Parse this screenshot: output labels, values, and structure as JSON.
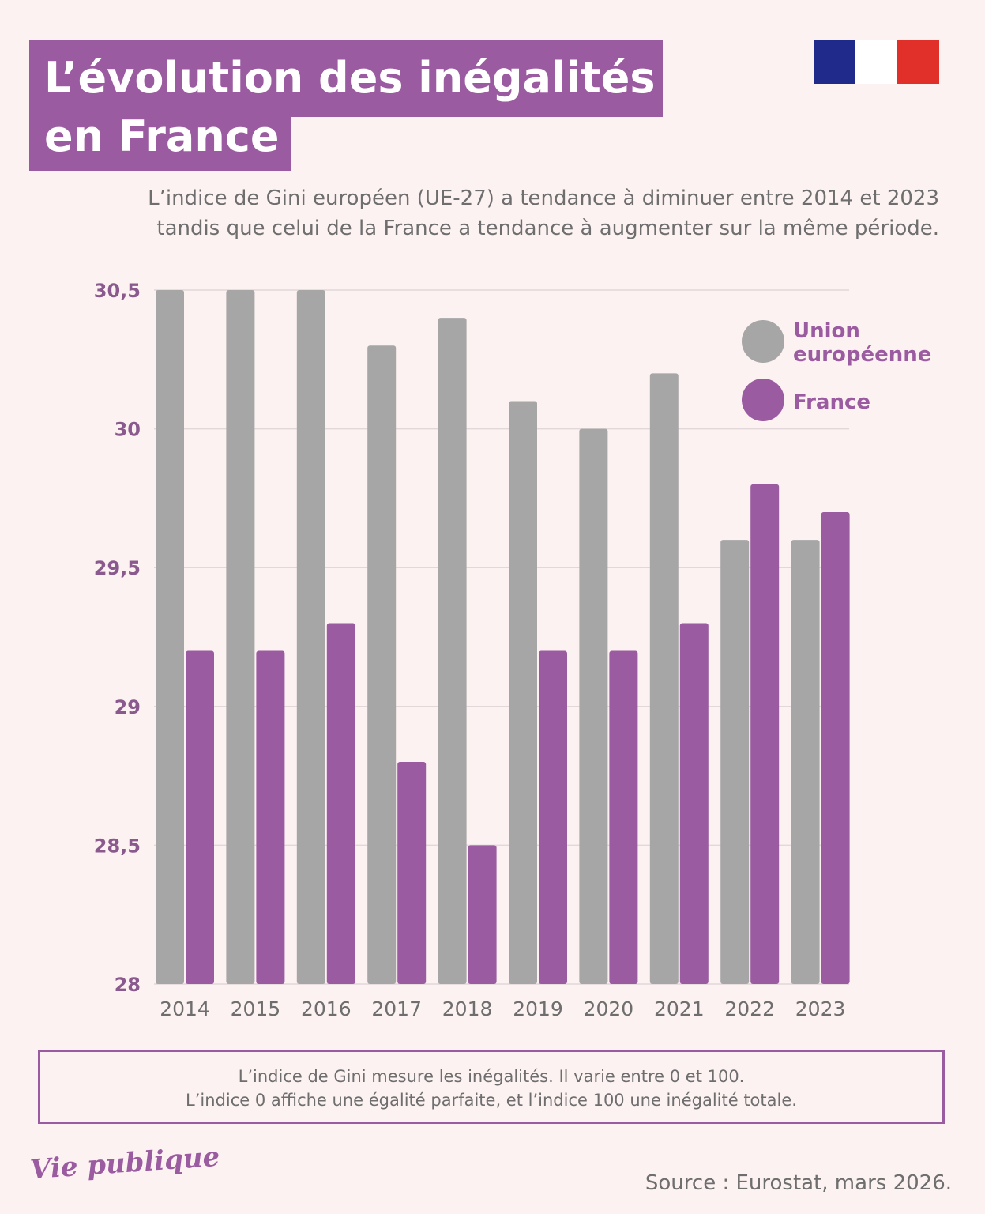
{
  "title": "L’évolution des inégalités en France",
  "subtitle": "L’indice de Gini européen (UE-27) a tendance à diminuer entre 2014 et 2023 tandis que celui de la France a tendance à augmenter sur la même période.",
  "note_line1": "L’indice de Gini mesure les inégalités. Il varie entre 0 et 100.",
  "note_line2": "L’indice 0 affiche une égalité parfaite, et l’indice 100 une inégalité totale.",
  "logo": "Vie publique",
  "source": "Source : Eurostat, mars 2026.",
  "colors": {
    "eu": "#a6a6a6",
    "france": "#9b5ba0",
    "axis": "#8a5a8e"
  },
  "chart_data": {
    "type": "bar",
    "title": "L’évolution des inégalités en France",
    "categories": [
      "2014",
      "2015",
      "2016",
      "2017",
      "2018",
      "2019",
      "2020",
      "2021",
      "2022",
      "2023"
    ],
    "series": [
      {
        "name": "Union européenne",
        "values": [
          30.5,
          30.5,
          30.5,
          30.3,
          30.4,
          30.1,
          30.0,
          30.2,
          29.6,
          29.6
        ]
      },
      {
        "name": "France",
        "values": [
          29.2,
          29.2,
          29.3,
          28.8,
          28.5,
          29.2,
          29.2,
          29.3,
          29.8,
          29.7
        ]
      }
    ],
    "ylim": [
      28,
      30.5
    ],
    "yticks": [
      28,
      28.5,
      29,
      29.5,
      30,
      30.5
    ],
    "ytick_labels": [
      "28",
      "28,5",
      "29",
      "29,5",
      "30",
      "30,5"
    ],
    "legend": [
      "Union européenne",
      "France"
    ],
    "legend_position": "top-right",
    "grid": true
  }
}
